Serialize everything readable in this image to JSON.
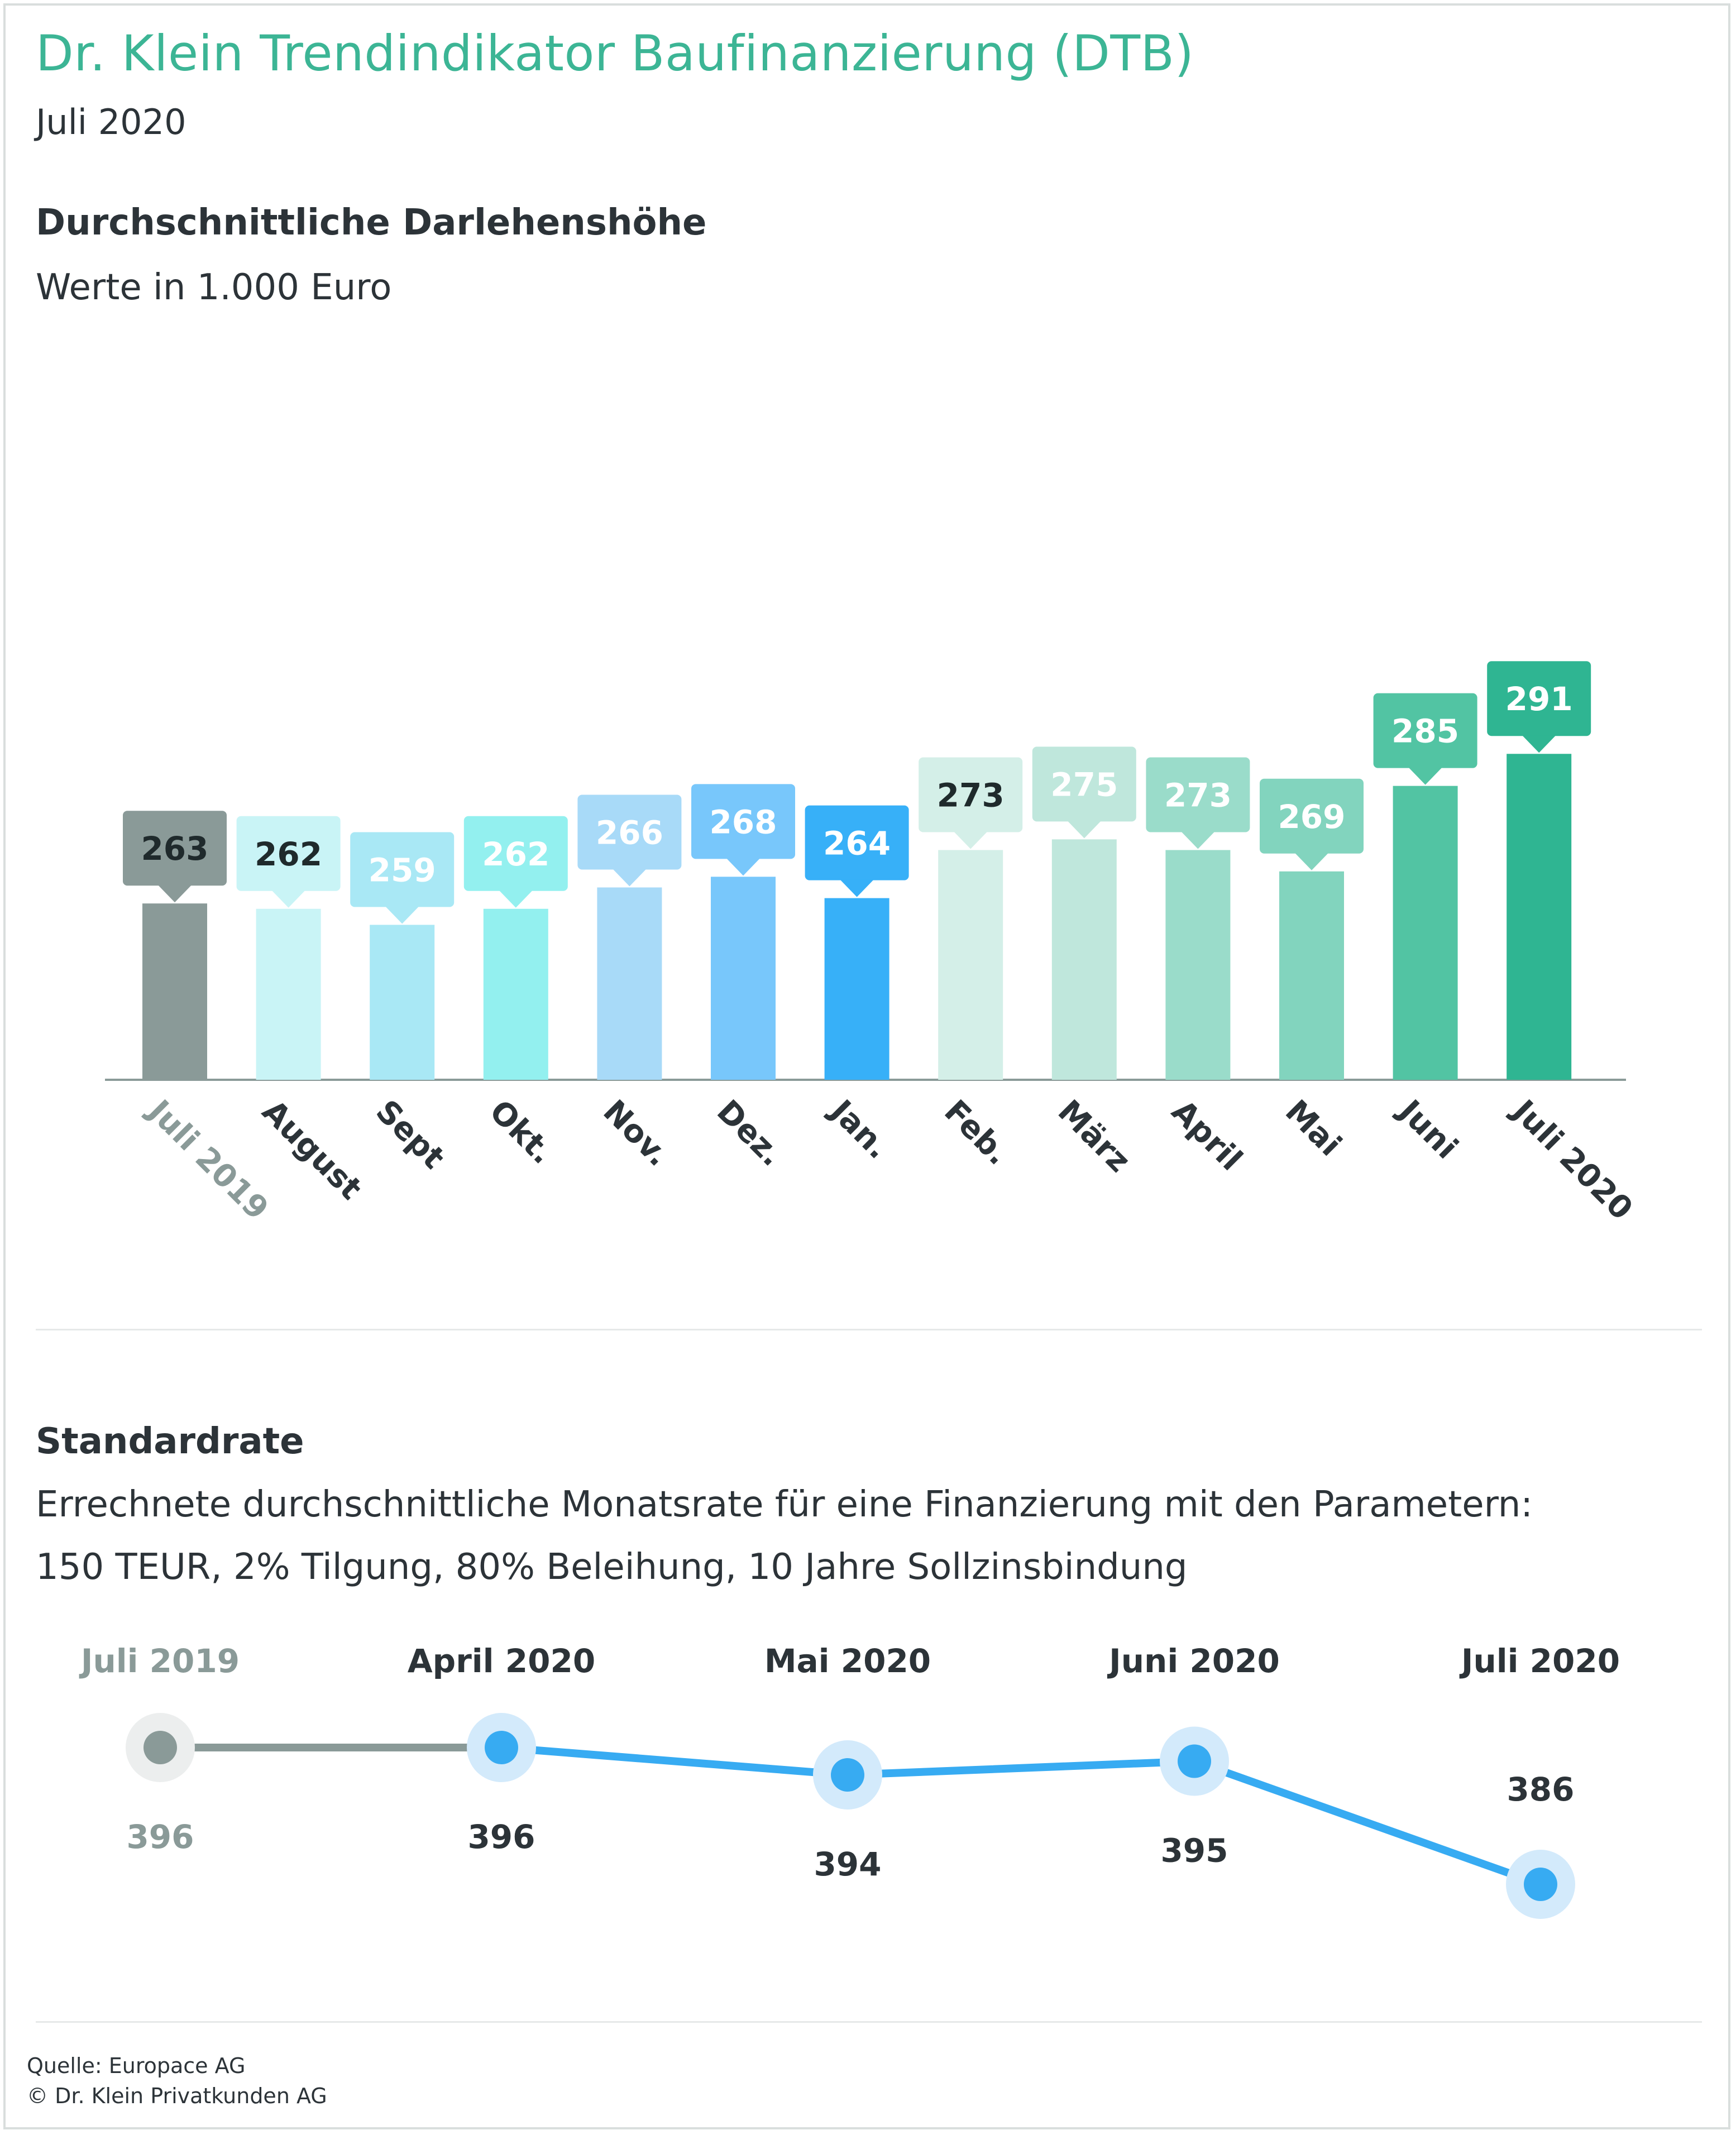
{
  "title": "Dr. Klein Trendindikator Baufinanzierung (DTB)",
  "subtitle": "Juli 2020",
  "section1": {
    "heading": "Durchschnittliche Darlehenshöhe",
    "note": "Werte in 1.000 Euro"
  },
  "section2": {
    "heading": "Standardrate",
    "line1": "Errechnete durchschnittliche Monatsrate für eine Finanzierung mit den Parametern:",
    "line2": "150 TEUR, 2% Tilgung, 80% Beleihung, 10 Jahre Sollzinsbindung"
  },
  "footer": {
    "source": "Quelle: Europace AG",
    "copyright": "© Dr. Klein Privatkunden AG"
  },
  "chart_data": [
    {
      "type": "bar",
      "title": "Durchschnittliche Darlehenshöhe",
      "ylabel": "Werte in 1.000 Euro",
      "categories": [
        "Juli 2019",
        "August",
        "Sept",
        "Okt.",
        "Nov.",
        "Dez.",
        "Jan.",
        "Feb.",
        "März",
        "April",
        "Mai",
        "Juni",
        "Juli 2020"
      ],
      "values": [
        263,
        262,
        259,
        262,
        266,
        268,
        264,
        273,
        275,
        273,
        269,
        285,
        291
      ],
      "bar_colors": [
        "#8a9a98",
        "#c9f4f6",
        "#a9e8f5",
        "#93f0ef",
        "#a8daf8",
        "#78c7fb",
        "#37b0f8",
        "#d4efe8",
        "#bfe7dc",
        "#9adcca",
        "#82d4be",
        "#52c4a3",
        "#2fb592"
      ],
      "label_colors": [
        "#8a9a98",
        "#c9f4f6",
        "#a9e8f5",
        "#93f0ef",
        "#a8daf8",
        "#78c7fb",
        "#37b0f8",
        "#d4efe8",
        "#bfe7dc",
        "#9adcca",
        "#82d4be",
        "#52c4a3",
        "#2fb592"
      ],
      "label_text_colors": [
        "#1f2a2c",
        "#1f2a2c",
        "#ffffff",
        "#ffffff",
        "#ffffff",
        "#ffffff",
        "#ffffff",
        "#1f2a2c",
        "#ffffff",
        "#ffffff",
        "#ffffff",
        "#ffffff",
        "#ffffff"
      ],
      "tick_colors": [
        "#8a9a98",
        "#2c3338",
        "#2c3338",
        "#2c3338",
        "#2c3338",
        "#2c3338",
        "#2c3338",
        "#2c3338",
        "#2c3338",
        "#2c3338",
        "#2c3338",
        "#2c3338",
        "#2c3338"
      ],
      "grid": false
    },
    {
      "type": "line",
      "title": "Standardrate",
      "categories": [
        "Juli 2019",
        "April 2020",
        "Mai 2020",
        "Juni 2020",
        "Juli 2020"
      ],
      "values": [
        396,
        396,
        394,
        395,
        386
      ],
      "colors": {
        "past": "#8a9a98",
        "current": "#37abf2",
        "current_halo": "#d3eafb",
        "past_halo": "#eceeee",
        "past_text": "#8a9a98",
        "text": "#2c3338"
      },
      "grid": false
    }
  ]
}
